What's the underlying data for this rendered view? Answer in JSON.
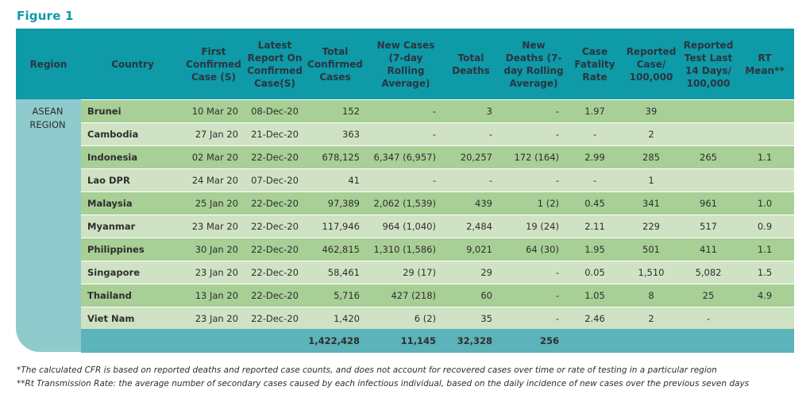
{
  "figure_title": "Figure 1",
  "headers": {
    "region": "Region",
    "country": "Country",
    "first_case": "First Confirmed Case (S)",
    "latest_report": "Latest Report On Confirmed Case(S)",
    "total_cases": "Total Confirmed Cases",
    "new_cases": "New Cases (7-day Rolling Average)",
    "total_deaths": "Total Deaths",
    "new_deaths": "New Deaths (7-day Rolling Average)",
    "cfr": "Case Fatality Rate",
    "reported_case": "Reported Case/ 100,000",
    "reported_test": "Reported Test Last 14 Days/ 100,000",
    "rt": "RT Mean**"
  },
  "region_name": "ASEAN REGION",
  "rows": [
    {
      "country": "Brunei",
      "first": "10 Mar 20",
      "latest": "08-Dec-20",
      "total": "152",
      "new": "-",
      "deaths": "3",
      "new_deaths": "-",
      "cfr": "1.97",
      "rep_case": "39",
      "rep_test": "",
      "rt": ""
    },
    {
      "country": "Cambodia",
      "first": "27 Jan 20",
      "latest": "21-Dec-20",
      "total": "363",
      "new": "-",
      "deaths": "-",
      "new_deaths": "-",
      "cfr": "-",
      "rep_case": "2",
      "rep_test": "",
      "rt": ""
    },
    {
      "country": "Indonesia",
      "first": "02 Mar 20",
      "latest": "22-Dec-20",
      "total": "678,125",
      "new": "6,347 (6,957)",
      "deaths": "20,257",
      "new_deaths": "172 (164)",
      "cfr": "2.99",
      "rep_case": "285",
      "rep_test": "265",
      "rt": "1.1"
    },
    {
      "country": "Lao DPR",
      "first": "24 Mar 20",
      "latest": "07-Dec-20",
      "total": "41",
      "new": "-",
      "deaths": "-",
      "new_deaths": "-",
      "cfr": "-",
      "rep_case": "1",
      "rep_test": "",
      "rt": ""
    },
    {
      "country": "Malaysia",
      "first": "25 Jan 20",
      "latest": "22-Dec-20",
      "total": "97,389",
      "new": "2,062 (1,539)",
      "deaths": "439",
      "new_deaths": "1 (2)",
      "cfr": "0.45",
      "rep_case": "341",
      "rep_test": "961",
      "rt": "1.0"
    },
    {
      "country": "Myanmar",
      "first": "23 Mar 20",
      "latest": "22-Dec-20",
      "total": "117,946",
      "new": "964 (1,040)",
      "deaths": "2,484",
      "new_deaths": "19 (24)",
      "cfr": "2.11",
      "rep_case": "229",
      "rep_test": "517",
      "rt": "0.9"
    },
    {
      "country": "Philippines",
      "first": "30 Jan 20",
      "latest": "22-Dec-20",
      "total": "462,815",
      "new": "1,310 (1,586)",
      "deaths": "9,021",
      "new_deaths": "64 (30)",
      "cfr": "1.95",
      "rep_case": "501",
      "rep_test": "411",
      "rt": "1.1"
    },
    {
      "country": "Singapore",
      "first": "23 Jan 20",
      "latest": "22-Dec-20",
      "total": "58,461",
      "new": "29 (17)",
      "deaths": "29",
      "new_deaths": "-",
      "cfr": "0.05",
      "rep_case": "1,510",
      "rep_test": "5,082",
      "rt": "1.5"
    },
    {
      "country": "Thailand",
      "first": "13 Jan 20",
      "latest": "22-Dec-20",
      "total": "5,716",
      "new": "427 (218)",
      "deaths": "60",
      "new_deaths": "-",
      "cfr": "1.05",
      "rep_case": "8",
      "rep_test": "25",
      "rt": "4.9"
    },
    {
      "country": "Viet Nam",
      "first": "23 Jan 20",
      "latest": "22-Dec-20",
      "total": "1,420",
      "new": "6 (2)",
      "deaths": "35",
      "new_deaths": "-",
      "cfr": "2.46",
      "rep_case": "2",
      "rep_test": "-",
      "rt": ""
    }
  ],
  "totals": {
    "total": "1,422,428",
    "new": "11,145",
    "deaths": "32,328",
    "new_deaths": "256"
  },
  "footnotes": [
    "*The calculated CFR is based on reported deaths and reported case counts, and does not account for recovered cases over time or rate of testing in a particular region",
    "**Rt Transmission Rate: the average number of secondary cases caused by each infectious individual, based on the daily incidence of new cases over the previous seven days"
  ],
  "colors": {
    "header": "#0e9aa7",
    "region": "#8fcbcd",
    "row_dark": "#a8cf95",
    "row_light": "#cfe3c4",
    "totals": "#5cb3b9",
    "title": "#0e9aa7"
  }
}
